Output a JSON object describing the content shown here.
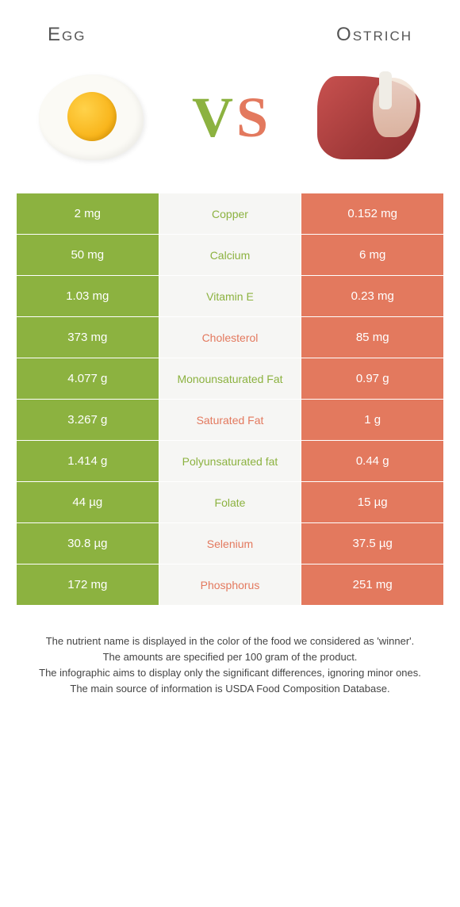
{
  "header": {
    "left_title": "Egg",
    "right_title": "Ostrich",
    "vs_v": "V",
    "vs_s": "S"
  },
  "colors": {
    "left_bg": "#8cb240",
    "right_bg": "#e3795e",
    "mid_bg": "#f6f6f4",
    "left_text": "#ffffff",
    "right_text": "#ffffff",
    "winner_left_color": "#8cb240",
    "winner_right_color": "#e3795e",
    "page_bg": "#ffffff"
  },
  "table": {
    "rows": [
      {
        "left": "2 mg",
        "label": "Copper",
        "right": "0.152 mg",
        "winner": "left"
      },
      {
        "left": "50 mg",
        "label": "Calcium",
        "right": "6 mg",
        "winner": "left"
      },
      {
        "left": "1.03 mg",
        "label": "Vitamin E",
        "right": "0.23 mg",
        "winner": "left"
      },
      {
        "left": "373 mg",
        "label": "Cholesterol",
        "right": "85 mg",
        "winner": "right"
      },
      {
        "left": "4.077 g",
        "label": "Monounsaturated Fat",
        "right": "0.97 g",
        "winner": "left"
      },
      {
        "left": "3.267 g",
        "label": "Saturated Fat",
        "right": "1 g",
        "winner": "right"
      },
      {
        "left": "1.414 g",
        "label": "Polyunsaturated fat",
        "right": "0.44 g",
        "winner": "left"
      },
      {
        "left": "44 µg",
        "label": "Folate",
        "right": "15 µg",
        "winner": "left"
      },
      {
        "left": "30.8 µg",
        "label": "Selenium",
        "right": "37.5 µg",
        "winner": "right"
      },
      {
        "left": "172 mg",
        "label": "Phosphorus",
        "right": "251 mg",
        "winner": "right"
      }
    ]
  },
  "footer": {
    "line1": "The nutrient name is displayed in the color of the food we considered as 'winner'.",
    "line2": "The amounts are specified per 100 gram of the product.",
    "line3": "The infographic aims to display only the significant differences, ignoring minor ones.",
    "line4": "The main source of information is USDA Food Composition Database."
  }
}
